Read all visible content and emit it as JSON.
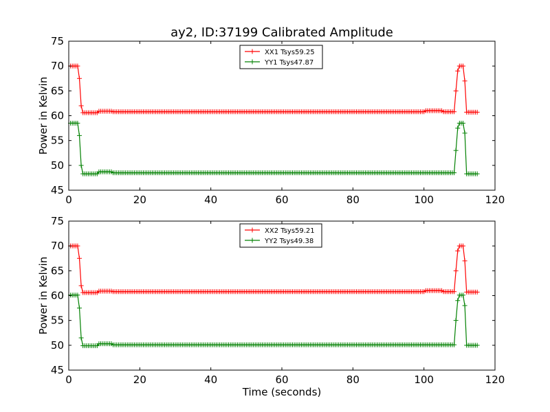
{
  "figure_title": "ay2, ID:37199 Calibrated Amplitude",
  "chart_data": [
    {
      "type": "line",
      "title": "ay2, ID:37199 Calibrated Amplitude",
      "xlabel": "",
      "ylabel": "Power in Kelvin",
      "xlim": [
        0,
        120
      ],
      "ylim": [
        45,
        75
      ],
      "xticks": [
        "0",
        "20",
        "40",
        "60",
        "80",
        "100",
        "120"
      ],
      "yticks": [
        "45",
        "50",
        "55",
        "60",
        "65",
        "70",
        "75"
      ],
      "grid": false,
      "legend_position": "top-center",
      "series": [
        {
          "name": "XX1 Tsys59.25",
          "color": "#ff0000",
          "marker": "plus",
          "segments": [
            {
              "x_start": 0.5,
              "x_end": 2.5,
              "value": 70.0
            },
            {
              "x_start": 3,
              "x_end": 3,
              "value": 67.5
            },
            {
              "x_start": 3.5,
              "x_end": 3.5,
              "value": 62.0
            },
            {
              "x_start": 4,
              "x_end": 8,
              "value": 60.6
            },
            {
              "x_start": 8.5,
              "x_end": 12,
              "value": 60.9
            },
            {
              "x_start": 12.5,
              "x_end": 100,
              "value": 60.8
            },
            {
              "x_start": 100.5,
              "x_end": 105,
              "value": 61.0
            },
            {
              "x_start": 105.5,
              "x_end": 108.5,
              "value": 60.8
            },
            {
              "x_start": 109,
              "x_end": 109,
              "value": 65.0
            },
            {
              "x_start": 109.5,
              "x_end": 109.5,
              "value": 69.0
            },
            {
              "x_start": 110,
              "x_end": 111,
              "value": 70.0
            },
            {
              "x_start": 111.5,
              "x_end": 111.5,
              "value": 67.0
            },
            {
              "x_start": 112,
              "x_end": 115,
              "value": 60.7
            }
          ]
        },
        {
          "name": "YY1 Tsys47.87",
          "color": "#008000",
          "marker": "plus",
          "segments": [
            {
              "x_start": 0.5,
              "x_end": 2.5,
              "value": 58.5
            },
            {
              "x_start": 3,
              "x_end": 3,
              "value": 56.0
            },
            {
              "x_start": 3.5,
              "x_end": 3.5,
              "value": 50.0
            },
            {
              "x_start": 4,
              "x_end": 8,
              "value": 48.3
            },
            {
              "x_start": 8.5,
              "x_end": 12,
              "value": 48.7
            },
            {
              "x_start": 12.5,
              "x_end": 108.5,
              "value": 48.5
            },
            {
              "x_start": 109,
              "x_end": 109,
              "value": 53.0
            },
            {
              "x_start": 109.5,
              "x_end": 109.5,
              "value": 57.5
            },
            {
              "x_start": 110,
              "x_end": 111,
              "value": 58.5
            },
            {
              "x_start": 111.5,
              "x_end": 111.5,
              "value": 56.5
            },
            {
              "x_start": 112,
              "x_end": 115,
              "value": 48.3
            }
          ]
        }
      ]
    },
    {
      "type": "line",
      "title": "",
      "xlabel": "Time (seconds)",
      "ylabel": "Power in Kelvin",
      "xlim": [
        0,
        120
      ],
      "ylim": [
        45,
        75
      ],
      "xticks": [
        "0",
        "20",
        "40",
        "60",
        "80",
        "100",
        "120"
      ],
      "yticks": [
        "45",
        "50",
        "55",
        "60",
        "65",
        "70",
        "75"
      ],
      "grid": false,
      "legend_position": "top-center",
      "series": [
        {
          "name": "XX2 Tsys59.21",
          "color": "#ff0000",
          "marker": "plus",
          "segments": [
            {
              "x_start": 0.5,
              "x_end": 2.5,
              "value": 70.0
            },
            {
              "x_start": 3,
              "x_end": 3,
              "value": 67.5
            },
            {
              "x_start": 3.5,
              "x_end": 3.5,
              "value": 62.0
            },
            {
              "x_start": 4,
              "x_end": 8,
              "value": 60.6
            },
            {
              "x_start": 8.5,
              "x_end": 12,
              "value": 60.9
            },
            {
              "x_start": 12.5,
              "x_end": 100,
              "value": 60.8
            },
            {
              "x_start": 100.5,
              "x_end": 105,
              "value": 61.0
            },
            {
              "x_start": 105.5,
              "x_end": 108.5,
              "value": 60.8
            },
            {
              "x_start": 109,
              "x_end": 109,
              "value": 65.0
            },
            {
              "x_start": 109.5,
              "x_end": 109.5,
              "value": 69.0
            },
            {
              "x_start": 110,
              "x_end": 111,
              "value": 70.0
            },
            {
              "x_start": 111.5,
              "x_end": 111.5,
              "value": 67.0
            },
            {
              "x_start": 112,
              "x_end": 115,
              "value": 60.7
            }
          ]
        },
        {
          "name": "YY2 Tsys49.38",
          "color": "#008000",
          "marker": "plus",
          "segments": [
            {
              "x_start": 0.5,
              "x_end": 2.5,
              "value": 60.1
            },
            {
              "x_start": 3,
              "x_end": 3,
              "value": 57.5
            },
            {
              "x_start": 3.5,
              "x_end": 3.5,
              "value": 51.5
            },
            {
              "x_start": 4,
              "x_end": 8,
              "value": 49.9
            },
            {
              "x_start": 8.5,
              "x_end": 12,
              "value": 50.3
            },
            {
              "x_start": 12.5,
              "x_end": 108.5,
              "value": 50.1
            },
            {
              "x_start": 109,
              "x_end": 109,
              "value": 55.0
            },
            {
              "x_start": 109.5,
              "x_end": 109.5,
              "value": 59.0
            },
            {
              "x_start": 110,
              "x_end": 111,
              "value": 60.1
            },
            {
              "x_start": 111.5,
              "x_end": 111.5,
              "value": 58.0
            },
            {
              "x_start": 112,
              "x_end": 115,
              "value": 50.0
            }
          ]
        }
      ]
    }
  ]
}
